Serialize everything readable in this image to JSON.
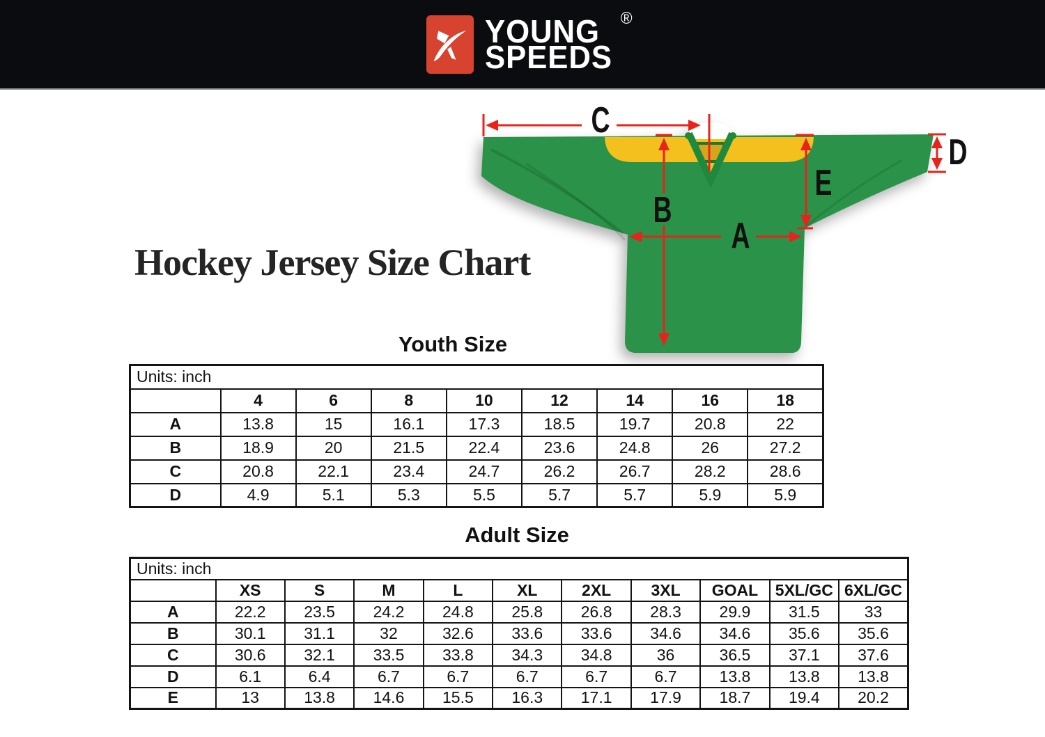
{
  "brand": {
    "name_line1": "YOUNG",
    "name_line2": "SPEEDS",
    "registered": "®",
    "logo_color": "#d8432f"
  },
  "page": {
    "title": "Hockey Jersey Size Chart"
  },
  "jersey": {
    "colors": {
      "green": "#2b9249",
      "yellow": "#f3c01e",
      "collar": "#1f8a3e",
      "arrow_red": "#e8231b"
    },
    "labels": {
      "A": "A",
      "B": "B",
      "C": "C",
      "D": "D",
      "E": "E"
    }
  },
  "tables": {
    "youth": {
      "heading": "Youth Size",
      "units_label": "Units: inch",
      "columns": [
        "4",
        "6",
        "8",
        "10",
        "12",
        "14",
        "16",
        "18"
      ],
      "rows": [
        [
          "A",
          "13.8",
          "15",
          "16.1",
          "17.3",
          "18.5",
          "19.7",
          "20.8",
          "22"
        ],
        [
          "B",
          "18.9",
          "20",
          "21.5",
          "22.4",
          "23.6",
          "24.8",
          "26",
          "27.2"
        ],
        [
          "C",
          "20.8",
          "22.1",
          "23.4",
          "24.7",
          "26.2",
          "26.7",
          "28.2",
          "28.6"
        ],
        [
          "D",
          "4.9",
          "5.1",
          "5.3",
          "5.5",
          "5.7",
          "5.7",
          "5.9",
          "5.9"
        ]
      ]
    },
    "adult": {
      "heading": "Adult Size",
      "units_label": "Units: inch",
      "columns": [
        "XS",
        "S",
        "M",
        "L",
        "XL",
        "2XL",
        "3XL",
        "GOAL",
        "5XL/GC",
        "6XL/GC"
      ],
      "rows": [
        [
          "A",
          "22.2",
          "23.5",
          "24.2",
          "24.8",
          "25.8",
          "26.8",
          "28.3",
          "29.9",
          "31.5",
          "33"
        ],
        [
          "B",
          "30.1",
          "31.1",
          "32",
          "32.6",
          "33.6",
          "33.6",
          "34.6",
          "34.6",
          "35.6",
          "35.6"
        ],
        [
          "C",
          "30.6",
          "32.1",
          "33.5",
          "33.8",
          "34.3",
          "34.8",
          "36",
          "36.5",
          "37.1",
          "37.6"
        ],
        [
          "D",
          "6.1",
          "6.4",
          "6.7",
          "6.7",
          "6.7",
          "6.7",
          "6.7",
          "13.8",
          "13.8",
          "13.8"
        ],
        [
          "E",
          "13",
          "13.8",
          "14.6",
          "15.5",
          "16.3",
          "17.1",
          "17.9",
          "18.7",
          "19.4",
          "20.2"
        ]
      ]
    }
  }
}
